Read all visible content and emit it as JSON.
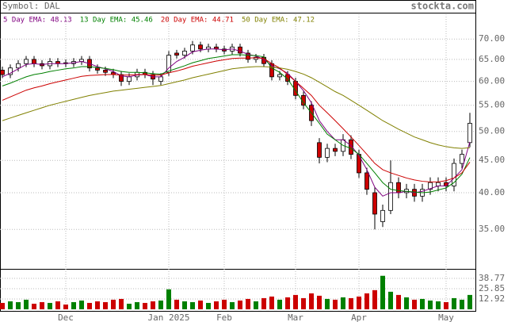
{
  "chart_data": {
    "type": "candlestick",
    "title": "Symbol: DAL",
    "source": "stockta.com",
    "categories": [
      null,
      null,
      null,
      null,
      null,
      null,
      null,
      null,
      "Dec",
      null,
      null,
      null,
      null,
      null,
      null,
      null,
      null,
      null,
      null,
      null,
      null,
      "Jan 2025",
      null,
      null,
      null,
      null,
      null,
      null,
      "Feb",
      null,
      null,
      null,
      null,
      null,
      null,
      null,
      null,
      "Mar",
      null,
      null,
      null,
      null,
      null,
      null,
      null,
      "Apr",
      null,
      null,
      null,
      null,
      null,
      null,
      null,
      null,
      null,
      null,
      "May",
      null,
      null,
      null
    ],
    "open": [
      62.5,
      61.5,
      63,
      64,
      65,
      64,
      63.5,
      64.5,
      64.2,
      64,
      64.5,
      65,
      63,
      62.5,
      62,
      61.5,
      60,
      61,
      62,
      61.5,
      60,
      62,
      66.5,
      66,
      67,
      68.5,
      67.5,
      68,
      67.5,
      67,
      68,
      66.5,
      65,
      65.5,
      64,
      61,
      61.5,
      60,
      57,
      55,
      48,
      45.5,
      47,
      46.5,
      48.5,
      46,
      43,
      40,
      36,
      37.5,
      41.5,
      40,
      40.5,
      39.5,
      40.5,
      41,
      41.5,
      41,
      44.5,
      48
    ],
    "high": [
      63.3,
      63.8,
      64.8,
      65.8,
      65.8,
      64.8,
      65.3,
      65.3,
      65,
      65.3,
      65.8,
      65.8,
      63.8,
      63.3,
      62.8,
      62.3,
      61.8,
      62.8,
      62.8,
      62.3,
      61.8,
      67,
      67.3,
      67.8,
      69.5,
      69.3,
      68.8,
      68.8,
      68.3,
      68.8,
      68.8,
      67.3,
      66.3,
      66.3,
      64.8,
      62.3,
      62.3,
      60.8,
      57.8,
      55.8,
      48.8,
      47.8,
      47.8,
      49.5,
      49.3,
      46.8,
      43.8,
      40.8,
      38.3,
      45,
      42.3,
      41.3,
      41.3,
      41.3,
      42.3,
      42.3,
      42.3,
      45.3,
      46.8,
      53.5
    ],
    "low": [
      60.7,
      60.7,
      62.2,
      63.2,
      63.2,
      62.7,
      62.7,
      63.2,
      63.2,
      63.2,
      63.7,
      62.2,
      61.7,
      61.2,
      60.7,
      59,
      59.2,
      60.2,
      60.7,
      59.2,
      59.2,
      61.2,
      65.2,
      65.2,
      66.2,
      66.7,
      66.7,
      66.7,
      66.2,
      66.2,
      65.7,
      64.2,
      64.2,
      63.2,
      60.2,
      60.2,
      59.2,
      56.2,
      54.2,
      51,
      44.5,
      44.7,
      45.7,
      45.7,
      45.2,
      42.2,
      39.7,
      35,
      35.3,
      37,
      39.2,
      39.2,
      38.7,
      38.7,
      39.7,
      40.2,
      40.2,
      40.2,
      43.7,
      47.2
    ],
    "close": [
      61.5,
      63,
      64,
      65,
      64,
      63.5,
      64.5,
      64,
      64,
      64.5,
      65,
      63,
      62.5,
      62,
      61.5,
      60,
      61,
      62,
      61.5,
      60.5,
      61,
      66,
      66,
      67,
      68.5,
      67.5,
      68,
      67.5,
      67,
      68,
      66.5,
      65,
      65.5,
      64,
      61,
      61.5,
      60,
      57,
      55,
      52,
      45.5,
      47,
      46.5,
      48.5,
      46,
      43,
      40.5,
      37,
      37.5,
      41.5,
      40,
      40.5,
      39.5,
      40.5,
      41.5,
      41.5,
      41,
      44.5,
      46,
      51.5
    ],
    "volume": [
      8,
      10,
      9,
      12,
      7,
      9,
      8,
      10,
      6,
      9,
      11,
      8,
      10,
      9,
      12,
      13,
      7,
      9,
      8,
      10,
      11,
      25,
      12,
      10,
      9,
      11,
      8,
      10,
      12,
      9,
      11,
      13,
      10,
      14,
      16,
      12,
      15,
      18,
      14,
      20,
      17,
      13,
      12,
      15,
      14,
      16,
      20,
      24,
      42,
      22,
      18,
      15,
      12,
      13,
      11,
      10,
      9,
      14,
      12,
      18
    ],
    "up_color": "#ffffff",
    "down_color": "#cc0000",
    "volume_up_color": "#008000",
    "volume_down_color": "#cc0000",
    "ema": [
      {
        "name": "5 Day EMA: 48.13",
        "color": "#800080",
        "values": [
          61,
          61.8,
          62.8,
          63.8,
          64,
          63.8,
          64,
          64,
          64,
          64.2,
          64.5,
          64,
          63.3,
          62.8,
          62.2,
          61.2,
          61,
          61.4,
          61.5,
          61,
          61,
          63,
          64.5,
          65.5,
          66.8,
          67.2,
          67.5,
          67.5,
          67.3,
          67.5,
          67,
          66.2,
          65.8,
          65,
          63.5,
          62.8,
          61.8,
          60,
          58,
          55.5,
          52,
          50,
          48.5,
          48.5,
          47.5,
          45.8,
          43.5,
          40.8,
          39.5,
          40,
          40,
          40.2,
          40,
          40.2,
          40.6,
          41,
          41,
          42.2,
          43.5,
          48.13
        ]
      },
      {
        "name": "13 Day EMA: 45.46",
        "color": "#008000",
        "values": [
          59,
          59.6,
          60.3,
          61,
          61.5,
          61.8,
          62.2,
          62.5,
          62.8,
          63,
          63.3,
          63.3,
          63.1,
          62.9,
          62.6,
          62.2,
          62,
          62,
          61.9,
          61.7,
          61.6,
          62.3,
          62.9,
          63.5,
          64.2,
          64.7,
          65.2,
          65.5,
          65.8,
          66.1,
          66.1,
          66,
          65.9,
          65.6,
          63,
          62,
          60.5,
          58,
          55.5,
          53.5,
          51.5,
          49.5,
          48.5,
          47.5,
          47,
          46,
          44.5,
          43,
          41.5,
          40.5,
          40.3,
          40.2,
          40.1,
          40,
          40.1,
          40.4,
          40.7,
          41.5,
          42.8,
          45.46
        ]
      },
      {
        "name": "20 Day EMA: 44.71",
        "color": "#cc0000",
        "values": [
          56,
          56.7,
          57.4,
          58.1,
          58.6,
          59,
          59.5,
          59.9,
          60.3,
          60.7,
          61.1,
          61.3,
          61.4,
          61.5,
          61.5,
          61.4,
          61.4,
          61.5,
          61.5,
          61.4,
          61.4,
          61.9,
          62.3,
          62.8,
          63.4,
          63.8,
          64.2,
          64.6,
          64.9,
          65.2,
          65.3,
          65.3,
          65.4,
          65.2,
          64,
          63,
          61.5,
          60,
          58.5,
          57,
          55,
          53.5,
          52,
          50.5,
          49,
          47.5,
          46,
          44.5,
          43.5,
          43,
          42.6,
          42.2,
          41.9,
          41.7,
          41.6,
          41.6,
          41.8,
          42.2,
          43,
          44.71
        ]
      },
      {
        "name": "50 Day EMA: 47.12",
        "color": "#808000",
        "values": [
          52,
          52.5,
          53,
          53.5,
          54,
          54.5,
          55,
          55.4,
          55.8,
          56.2,
          56.6,
          57,
          57.3,
          57.6,
          57.9,
          58.1,
          58.3,
          58.5,
          58.7,
          58.9,
          59.1,
          59.5,
          59.9,
          60.3,
          60.8,
          61.2,
          61.6,
          62,
          62.4,
          62.8,
          63,
          63.2,
          63.3,
          63.3,
          63.2,
          63,
          62.7,
          62.2,
          61.6,
          60.8,
          59.8,
          58.8,
          57.8,
          57,
          56,
          55,
          54,
          53,
          52,
          51.2,
          50.4,
          49.7,
          49,
          48.5,
          48,
          47.6,
          47.3,
          47.1,
          47,
          47.12
        ]
      }
    ],
    "log_scale": true,
    "ylim": [
      30.4,
      76.6
    ],
    "yticks": [
      {
        "value": 35,
        "label": "35.00"
      },
      {
        "value": 40,
        "label": "40.00"
      },
      {
        "value": 45,
        "label": "45.00"
      },
      {
        "value": 50,
        "label": "50.00"
      },
      {
        "value": 55,
        "label": "55.00"
      },
      {
        "value": 60,
        "label": "60.00"
      },
      {
        "value": 65,
        "label": "65.00"
      },
      {
        "value": 70,
        "label": "70.00"
      }
    ],
    "y2lim": [
      0,
      49.7
    ],
    "y2ticks": [
      12.92,
      25.85,
      38.77
    ],
    "grid": true
  }
}
